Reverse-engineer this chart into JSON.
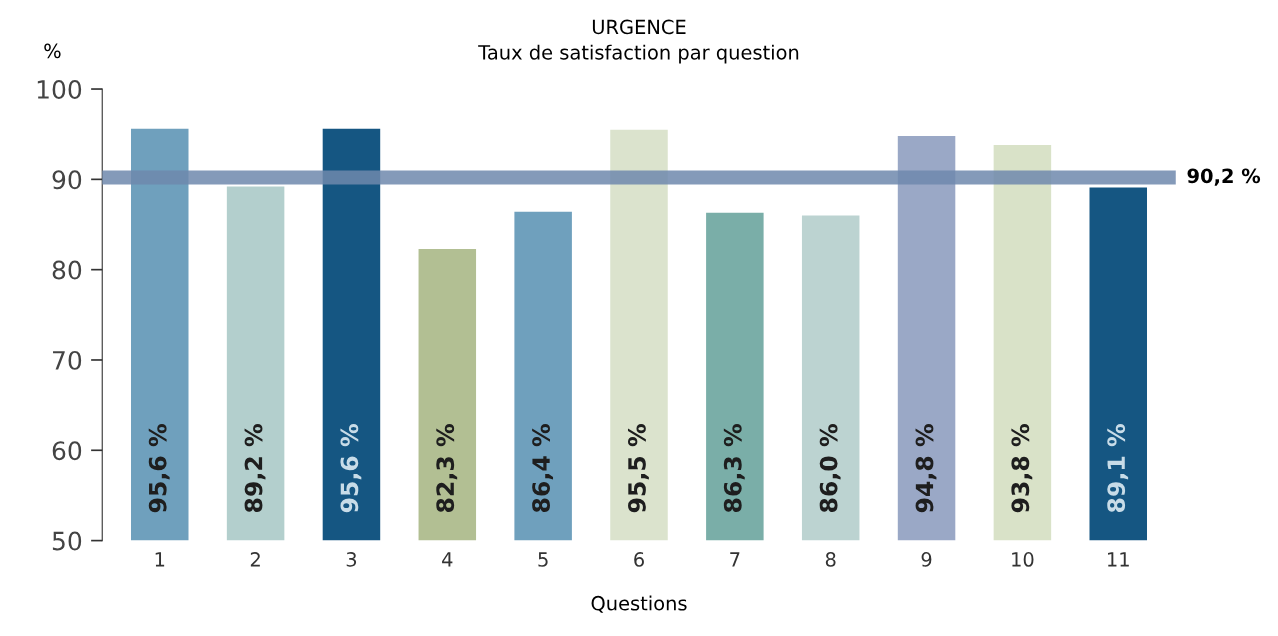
{
  "chart_data": {
    "type": "bar",
    "title": "URGENCE",
    "subtitle": "Taux de satisfaction par question",
    "xlabel": "Questions",
    "ylabel": "%",
    "categories": [
      "1",
      "2",
      "3",
      "4",
      "5",
      "6",
      "7",
      "8",
      "9",
      "10",
      "11"
    ],
    "values": [
      95.6,
      89.2,
      95.6,
      82.3,
      86.4,
      95.5,
      86.3,
      86.0,
      94.8,
      93.8,
      89.1
    ],
    "value_labels": [
      "95,6 %",
      "89,2 %",
      "95,6 %",
      "82,3 %",
      "86,4 %",
      "95,5 %",
      "86,3 %",
      "86,0 %",
      "94,8 %",
      "93,8 %",
      "89,1 %"
    ],
    "colors": [
      "#6fa0bd",
      "#b3cfcd",
      "#155682",
      "#b2bf93",
      "#6fa0bd",
      "#dbe3cd",
      "#7aaea8",
      "#bcd3d1",
      "#9aa8c6",
      "#d9e2c8",
      "#155682"
    ],
    "ylim": [
      50,
      100
    ],
    "yticks": [
      50,
      60,
      70,
      80,
      90,
      100
    ],
    "ref_lines": [
      {
        "axis": "y",
        "value": 90.2,
        "label": "90,2 %",
        "color": "#6f88ad"
      }
    ],
    "grid": false,
    "legend": false
  }
}
